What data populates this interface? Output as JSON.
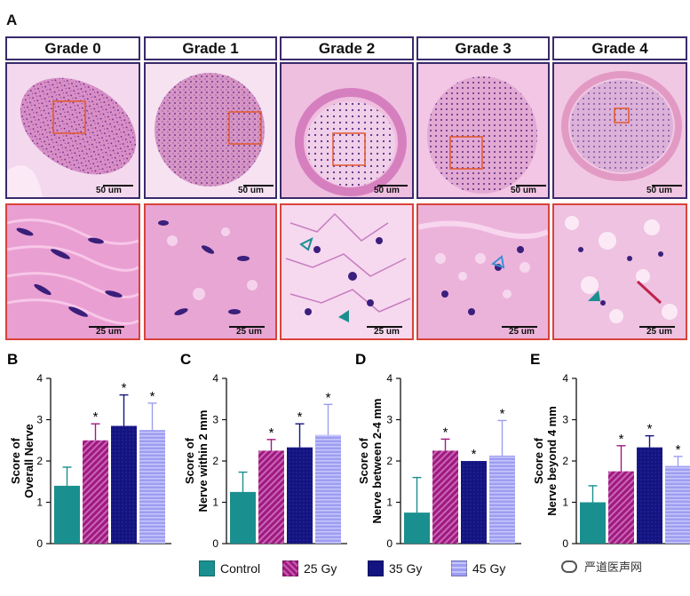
{
  "figure": {
    "panel_a_letter": "A",
    "grades": [
      "Grade 0",
      "Grade 1",
      "Grade 2",
      "Grade 3",
      "Grade 4"
    ],
    "scale_top": "50 um",
    "scale_bottom": "25 um"
  },
  "legend": {
    "items": [
      {
        "label": "Control",
        "color": "#1a8f8f"
      },
      {
        "label": "25 Gy",
        "color": "#a0197f"
      },
      {
        "label": "35 Gy",
        "color": "#141480"
      },
      {
        "label": "45 Gy",
        "color": "#9d9df2"
      }
    ]
  },
  "watermark": {
    "text": "严道医声网"
  },
  "chart_data": [
    {
      "type": "bar",
      "panel": "B",
      "ylabel": "Score of Overall Nerve",
      "categories": [
        "Control",
        "25 Gy",
        "35 Gy",
        "45 Gy"
      ],
      "values": [
        1.4,
        2.5,
        2.85,
        2.75
      ],
      "errors": [
        0.45,
        0.4,
        0.75,
        0.65
      ],
      "significant": [
        false,
        true,
        true,
        true
      ],
      "ylim": [
        0,
        4
      ],
      "yticks": [
        "0",
        "1",
        "2",
        "3",
        "4"
      ]
    },
    {
      "type": "bar",
      "panel": "C",
      "ylabel": "Score of Nerve within 2 mm",
      "categories": [
        "Control",
        "25 Gy",
        "35 Gy",
        "45 Gy"
      ],
      "values": [
        1.25,
        2.25,
        2.33,
        2.63
      ],
      "errors": [
        0.48,
        0.27,
        0.57,
        0.74
      ],
      "significant": [
        false,
        true,
        true,
        true
      ],
      "ylim": [
        0,
        4
      ],
      "yticks": [
        "0",
        "1",
        "2",
        "3",
        "4"
      ]
    },
    {
      "type": "bar",
      "panel": "D",
      "ylabel": "Score of Nerve between 2-4 mm",
      "categories": [
        "Control",
        "25 Gy",
        "35 Gy",
        "45 Gy"
      ],
      "values": [
        0.75,
        2.25,
        2.0,
        2.13
      ],
      "errors": [
        0.85,
        0.28,
        0.0,
        0.85
      ],
      "significant": [
        false,
        true,
        true,
        true
      ],
      "ylim": [
        0,
        4
      ],
      "yticks": [
        "0",
        "1",
        "2",
        "3",
        "4"
      ]
    },
    {
      "type": "bar",
      "panel": "E",
      "ylabel": "Score of Nerve beyond 4 mm",
      "categories": [
        "Control",
        "25 Gy",
        "35 Gy",
        "45 Gy"
      ],
      "values": [
        1.0,
        1.75,
        2.33,
        1.88
      ],
      "errors": [
        0.4,
        0.62,
        0.28,
        0.23
      ],
      "significant": [
        false,
        true,
        true,
        true
      ],
      "ylim": [
        0,
        4
      ],
      "yticks": [
        "0",
        "1",
        "2",
        "3",
        "4"
      ]
    }
  ]
}
